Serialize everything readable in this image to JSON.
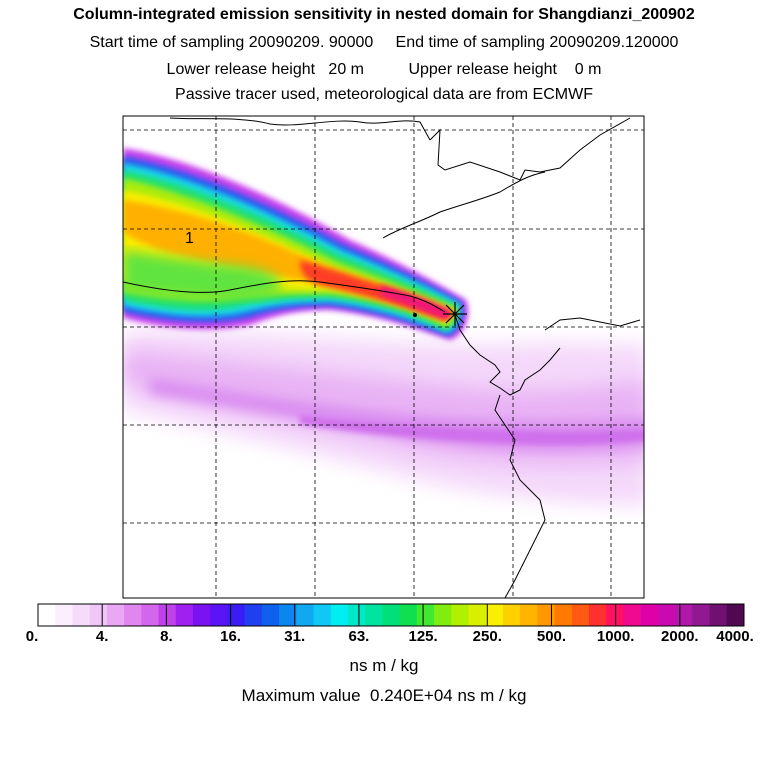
{
  "header": {
    "title": "Column-integrated emission sensitivity in nested domain for Shangdianzi_200902",
    "sampling_line": "Start time of sampling 20090209. 90000     End time of sampling 20090209.120000",
    "release_line": "Lower release height   20 m          Upper release height    0 m",
    "tracer_line": "Passive tracer used, meteorological data are from ECMWF"
  },
  "map": {
    "contour_label": "1",
    "receptor_marker": "star-marker"
  },
  "colorbar": {
    "tick_labels": [
      "0.",
      "4.",
      "8.",
      "16.",
      "31.",
      "63.",
      "125.",
      "250.",
      "500.",
      "1000.",
      "2000.",
      "4000."
    ],
    "colors": [
      "#ffffff",
      "#fbeefd",
      "#f6dcfb",
      "#f0c6f8",
      "#e8a8f4",
      "#df86ef",
      "#d466ec",
      "#c040ea",
      "#a020f0",
      "#7a12f2",
      "#5a14f6",
      "#3a1cf4",
      "#2040f0",
      "#1060ee",
      "#0a86ee",
      "#10a8f0",
      "#10c8f4",
      "#00eef0",
      "#00e8c8",
      "#00e4a0",
      "#00e078",
      "#10e050",
      "#40e830",
      "#80ec10",
      "#b0f000",
      "#d8f000",
      "#f8f000",
      "#ffd000",
      "#ffb400",
      "#ff9800",
      "#ff7a00",
      "#ff5a10",
      "#ff3030",
      "#ff1060",
      "#f00a90",
      "#e000a8",
      "#c80ab0",
      "#b018a8",
      "#901890",
      "#701070",
      "#500850"
    ]
  },
  "units": "ns m / kg",
  "max_value": "Maximum value  0.240E+04 ns m / kg"
}
